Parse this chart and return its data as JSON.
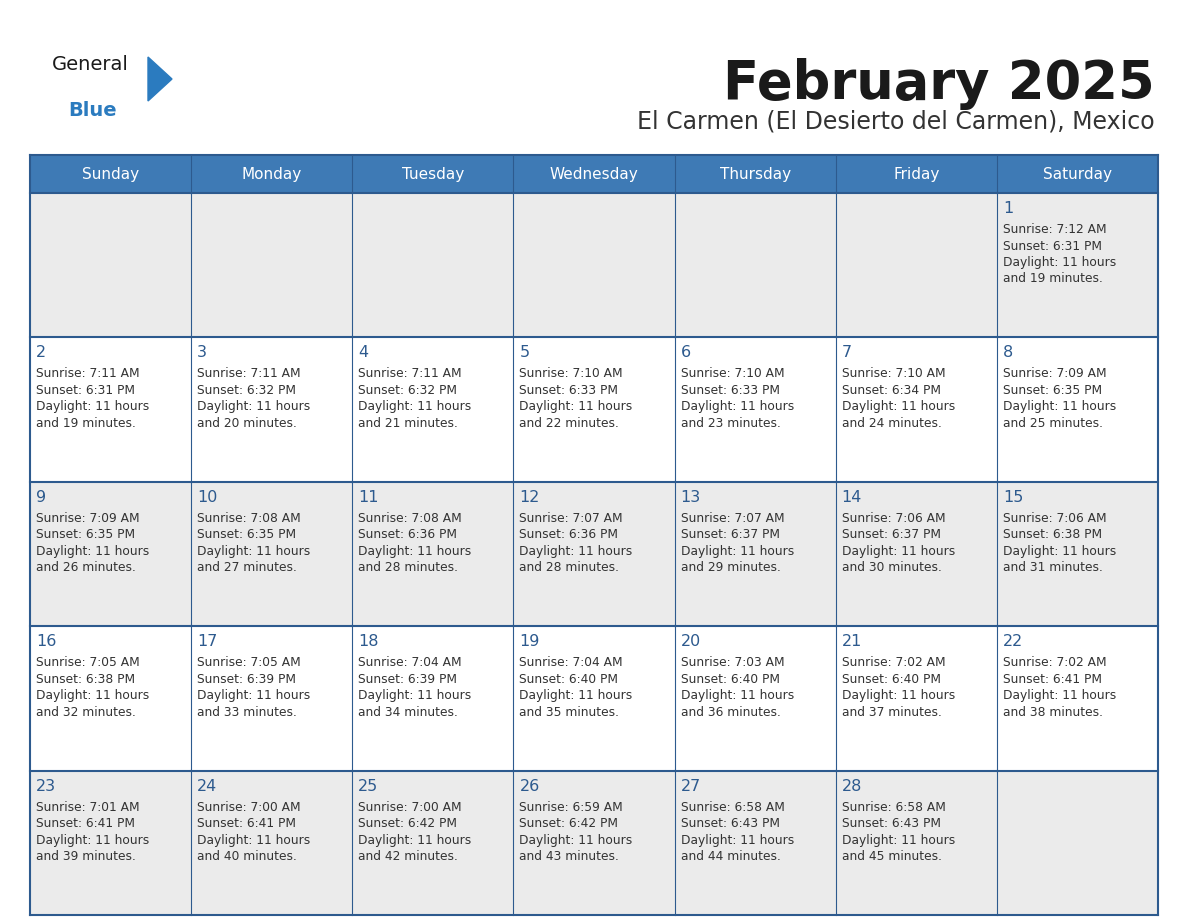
{
  "title": "February 2025",
  "subtitle": "El Carmen (El Desierto del Carmen), Mexico",
  "days_of_week": [
    "Sunday",
    "Monday",
    "Tuesday",
    "Wednesday",
    "Thursday",
    "Friday",
    "Saturday"
  ],
  "header_bg_color": "#3e7ab5",
  "header_text_color": "#ffffff",
  "grid_line_color": "#2d5a8e",
  "day_number_color": "#2d5a8e",
  "text_color": "#333333",
  "title_color": "#1a1a1a",
  "subtitle_color": "#333333",
  "general_text_color": "#1a1a1a",
  "blue_color": "#2b7bbf",
  "row0_bg": "#ebebeb",
  "other_row_bg": "#ffffff",
  "calendar_data": [
    [
      null,
      null,
      null,
      null,
      null,
      null,
      1
    ],
    [
      2,
      3,
      4,
      5,
      6,
      7,
      8
    ],
    [
      9,
      10,
      11,
      12,
      13,
      14,
      15
    ],
    [
      16,
      17,
      18,
      19,
      20,
      21,
      22
    ],
    [
      23,
      24,
      25,
      26,
      27,
      28,
      null
    ]
  ],
  "sunrise_data": {
    "1": "7:12 AM",
    "2": "7:11 AM",
    "3": "7:11 AM",
    "4": "7:11 AM",
    "5": "7:10 AM",
    "6": "7:10 AM",
    "7": "7:10 AM",
    "8": "7:09 AM",
    "9": "7:09 AM",
    "10": "7:08 AM",
    "11": "7:08 AM",
    "12": "7:07 AM",
    "13": "7:07 AM",
    "14": "7:06 AM",
    "15": "7:06 AM",
    "16": "7:05 AM",
    "17": "7:05 AM",
    "18": "7:04 AM",
    "19": "7:04 AM",
    "20": "7:03 AM",
    "21": "7:02 AM",
    "22": "7:02 AM",
    "23": "7:01 AM",
    "24": "7:00 AM",
    "25": "7:00 AM",
    "26": "6:59 AM",
    "27": "6:58 AM",
    "28": "6:58 AM"
  },
  "sunset_data": {
    "1": "6:31 PM",
    "2": "6:31 PM",
    "3": "6:32 PM",
    "4": "6:32 PM",
    "5": "6:33 PM",
    "6": "6:33 PM",
    "7": "6:34 PM",
    "8": "6:35 PM",
    "9": "6:35 PM",
    "10": "6:35 PM",
    "11": "6:36 PM",
    "12": "6:36 PM",
    "13": "6:37 PM",
    "14": "6:37 PM",
    "15": "6:38 PM",
    "16": "6:38 PM",
    "17": "6:39 PM",
    "18": "6:39 PM",
    "19": "6:40 PM",
    "20": "6:40 PM",
    "21": "6:40 PM",
    "22": "6:41 PM",
    "23": "6:41 PM",
    "24": "6:41 PM",
    "25": "6:42 PM",
    "26": "6:42 PM",
    "27": "6:43 PM",
    "28": "6:43 PM"
  },
  "daylight_data": {
    "1": "11 hours and 19 minutes.",
    "2": "11 hours and 19 minutes.",
    "3": "11 hours and 20 minutes.",
    "4": "11 hours and 21 minutes.",
    "5": "11 hours and 22 minutes.",
    "6": "11 hours and 23 minutes.",
    "7": "11 hours and 24 minutes.",
    "8": "11 hours and 25 minutes.",
    "9": "11 hours and 26 minutes.",
    "10": "11 hours and 27 minutes.",
    "11": "11 hours and 28 minutes.",
    "12": "11 hours and 28 minutes.",
    "13": "11 hours and 29 minutes.",
    "14": "11 hours and 30 minutes.",
    "15": "11 hours and 31 minutes.",
    "16": "11 hours and 32 minutes.",
    "17": "11 hours and 33 minutes.",
    "18": "11 hours and 34 minutes.",
    "19": "11 hours and 35 minutes.",
    "20": "11 hours and 36 minutes.",
    "21": "11 hours and 37 minutes.",
    "22": "11 hours and 38 minutes.",
    "23": "11 hours and 39 minutes.",
    "24": "11 hours and 40 minutes.",
    "25": "11 hours and 42 minutes.",
    "26": "11 hours and 43 minutes.",
    "27": "11 hours and 44 minutes.",
    "28": "11 hours and 45 minutes."
  }
}
